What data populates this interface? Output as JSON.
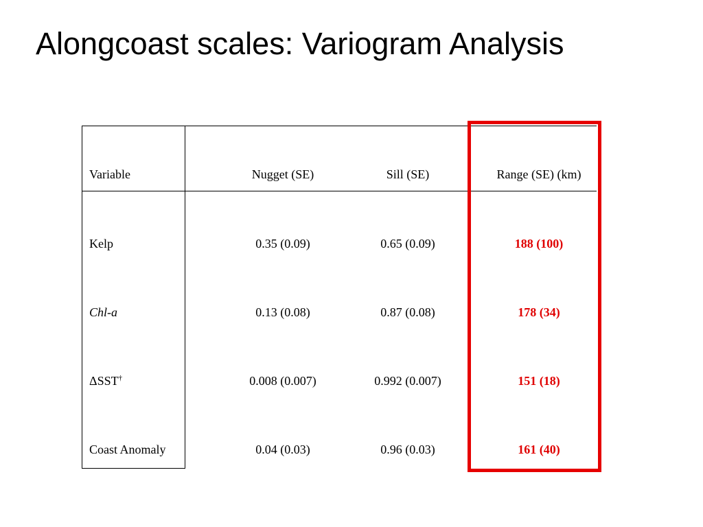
{
  "slide": {
    "title": "Alongcoast scales: Variogram Analysis"
  },
  "table": {
    "headers": {
      "variable": "Variable",
      "nugget": "Nugget (SE)",
      "sill": "Sill (SE)",
      "range": "Range (SE) (km)"
    },
    "rows": [
      {
        "variable": "Kelp",
        "variable_italic": false,
        "variable_suffix": "",
        "nugget": "0.35 (0.09)",
        "sill": "0.65 (0.09)",
        "range": "188 (100)"
      },
      {
        "variable": "Chl-a",
        "variable_italic": true,
        "variable_suffix": "",
        "nugget": "0.13 (0.08)",
        "sill": "0.87 (0.08)",
        "range": "178 (34)"
      },
      {
        "variable": "ΔSST",
        "variable_italic": false,
        "variable_suffix": "†",
        "nugget": "0.008 (0.007)",
        "sill": "0.992 (0.007)",
        "range": "151 (18)"
      },
      {
        "variable": "Coast Anomaly",
        "variable_italic": false,
        "variable_suffix": "",
        "nugget": "0.04 (0.03)",
        "sill": "0.96 (0.03)",
        "range": "161 (40)"
      }
    ]
  },
  "colors": {
    "highlight": "#e60000",
    "range_text": "#e00000"
  }
}
